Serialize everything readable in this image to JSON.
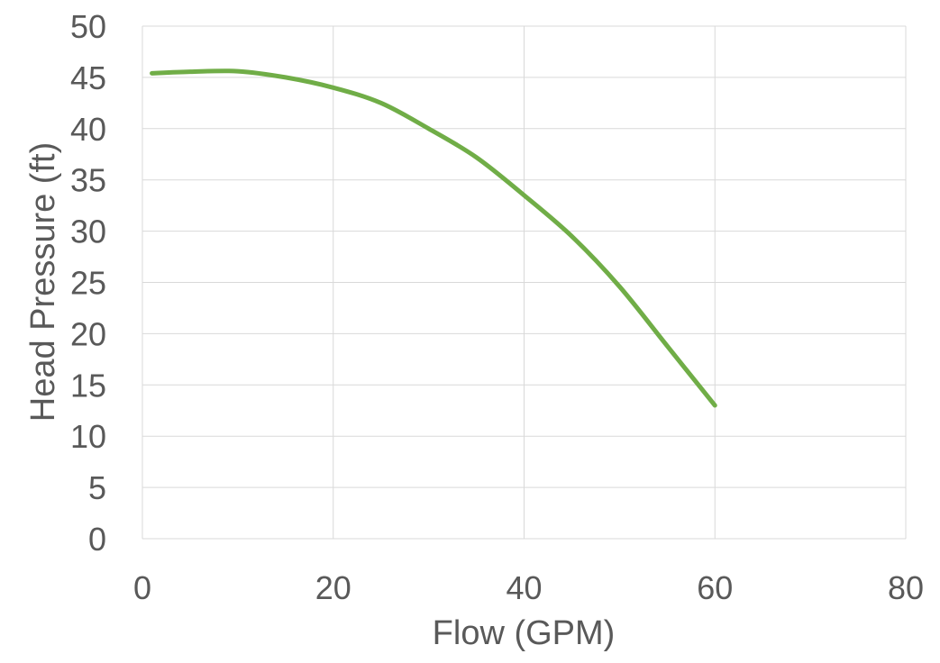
{
  "chart_data": {
    "type": "line",
    "title": "",
    "xlabel": "Flow (GPM)",
    "ylabel": "Head Pressure (ft)",
    "xlim": [
      0,
      80
    ],
    "ylim": [
      0,
      50
    ],
    "x_ticks": [
      0,
      20,
      40,
      60,
      80
    ],
    "y_ticks": [
      0,
      5,
      10,
      15,
      20,
      25,
      30,
      35,
      40,
      45,
      50
    ],
    "grid": true,
    "legend": "none",
    "series": [
      {
        "color": "#70ad47",
        "points": [
          {
            "x": 1,
            "y": 45.4
          },
          {
            "x": 5,
            "y": 45.55
          },
          {
            "x": 10,
            "y": 45.6
          },
          {
            "x": 15,
            "y": 45
          },
          {
            "x": 20,
            "y": 44
          },
          {
            "x": 25,
            "y": 42.5
          },
          {
            "x": 30,
            "y": 40
          },
          {
            "x": 35,
            "y": 37.2
          },
          {
            "x": 40,
            "y": 33.5
          },
          {
            "x": 45,
            "y": 29.5
          },
          {
            "x": 50,
            "y": 24.6
          },
          {
            "x": 55,
            "y": 18.8
          },
          {
            "x": 60,
            "y": 13
          }
        ]
      }
    ]
  }
}
